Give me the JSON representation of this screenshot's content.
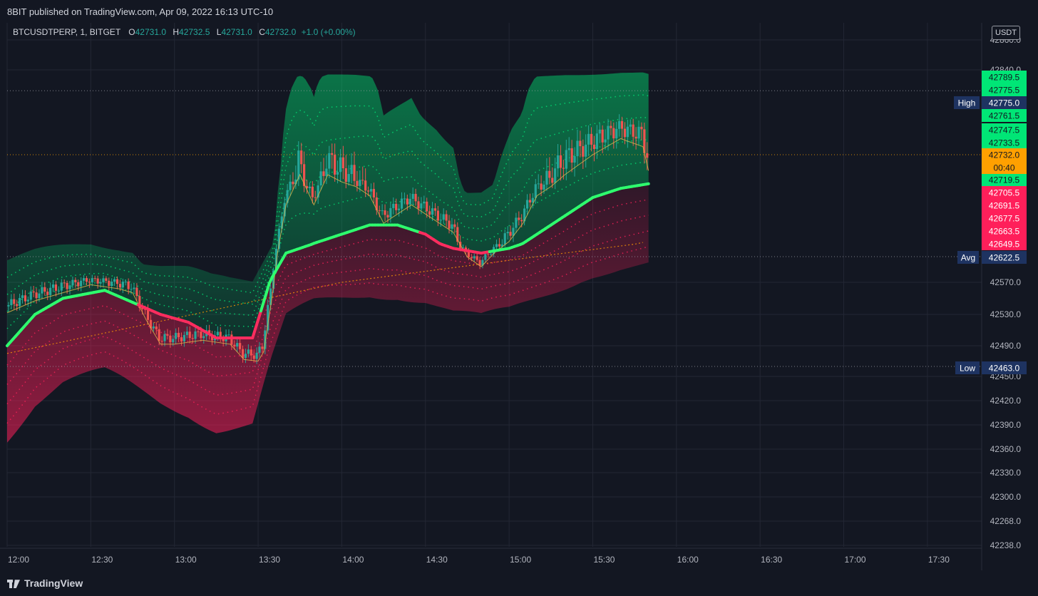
{
  "header": {
    "publish_text": "8BIT published on TradingView.com, Apr 09, 2022 16:13 UTC-10"
  },
  "legend": {
    "symbol": "BTCUSDTPERP, 1, BITGET",
    "o_label": "O",
    "o_value": "42731.0",
    "h_label": "H",
    "h_value": "42732.5",
    "l_label": "L",
    "l_value": "42731.0",
    "c_label": "C",
    "c_value": "42732.0",
    "change": "+1.0 (+0.00%)"
  },
  "currency_button": "USDT",
  "footer": {
    "brand": "TradingView"
  },
  "colors": {
    "background": "#131722",
    "grid": "#232734",
    "text": "#d1d4dc",
    "up": "#26a69a",
    "bull_band": "#00e676",
    "bear_band": "#ff1f5a",
    "baseline_up": "#2eff6e",
    "baseline_down": "#ff2d5f",
    "current": "#ffa000",
    "label_blue": "#1e3361"
  },
  "chart_data": {
    "type": "line",
    "title": "",
    "x_range": [
      "12:00",
      "17:40"
    ],
    "x_ticks": [
      "12:00",
      "12:30",
      "13:00",
      "13:30",
      "14:00",
      "14:30",
      "15:00",
      "15:30",
      "16:00",
      "16:30",
      "17:00",
      "17:30"
    ],
    "y_range": [
      42238.0,
      42860.0
    ],
    "y_ticks": [
      "42238.0",
      "42268.0",
      "42300.0",
      "42330.0",
      "42360.0",
      "42390.0",
      "42420.0",
      "42450.0",
      "42490.0",
      "42530.0",
      "42570.0",
      "42840.0",
      "42860.0"
    ],
    "grid": true,
    "series": [
      {
        "name": "",
        "values": [
          [
            0,
            42540
          ],
          [
            10,
            42555
          ],
          [
            20,
            42565
          ],
          [
            30,
            42575
          ],
          [
            40,
            42570
          ],
          [
            45,
            42565
          ],
          [
            50,
            42530
          ],
          [
            55,
            42500
          ],
          [
            60,
            42500
          ],
          [
            70,
            42505
          ],
          [
            80,
            42500
          ],
          [
            85,
            42480
          ],
          [
            90,
            42478
          ],
          [
            92,
            42490
          ],
          [
            95,
            42560
          ],
          [
            97,
            42640
          ],
          [
            100,
            42700
          ],
          [
            105,
            42730
          ],
          [
            110,
            42700
          ],
          [
            115,
            42730
          ],
          [
            120,
            42725
          ],
          [
            125,
            42720
          ],
          [
            130,
            42710
          ],
          [
            135,
            42680
          ],
          [
            140,
            42690
          ],
          [
            145,
            42700
          ],
          [
            150,
            42690
          ],
          [
            155,
            42680
          ],
          [
            160,
            42670
          ],
          [
            165,
            42630
          ],
          [
            170,
            42610
          ],
          [
            175,
            42640
          ],
          [
            180,
            42660
          ],
          [
            185,
            42680
          ],
          [
            190,
            42710
          ],
          [
            195,
            42720
          ],
          [
            200,
            42730
          ],
          [
            210,
            42740
          ],
          [
            220,
            42750
          ],
          [
            228,
            42745
          ],
          [
            230,
            42732
          ]
        ]
      },
      {
        "name": "",
        "values": [
          [
            0,
            42490
          ],
          [
            10,
            42530
          ],
          [
            20,
            42550
          ],
          [
            35,
            42560
          ],
          [
            45,
            42545
          ],
          [
            55,
            42530
          ],
          [
            65,
            42520
          ],
          [
            75,
            42500
          ],
          [
            88,
            42500
          ],
          [
            95,
            42580
          ],
          [
            100,
            42630
          ],
          [
            110,
            42650
          ],
          [
            120,
            42660
          ],
          [
            130,
            42670
          ],
          [
            140,
            42670
          ],
          [
            150,
            42660
          ],
          [
            160,
            42640
          ],
          [
            170,
            42630
          ],
          [
            180,
            42640
          ],
          [
            190,
            42660
          ],
          [
            200,
            42680
          ],
          [
            210,
            42700
          ],
          [
            220,
            42710
          ],
          [
            230,
            42715
          ]
        ]
      }
    ],
    "price_labels": {
      "bands_green": [
        "42789.5",
        "42775.5",
        "42761.5",
        "42747.5",
        "42733.5",
        "42719.5"
      ],
      "bands_red": [
        "42705.5",
        "42691.5",
        "42677.5",
        "42663.5",
        "42649.5"
      ],
      "current_price": "42732.0",
      "countdown": "00:40",
      "high": {
        "label": "High",
        "value": "42775.0"
      },
      "avg": {
        "label": "Avg",
        "value": "42622.5"
      },
      "low": {
        "label": "Low",
        "value": "42463.0"
      }
    }
  }
}
